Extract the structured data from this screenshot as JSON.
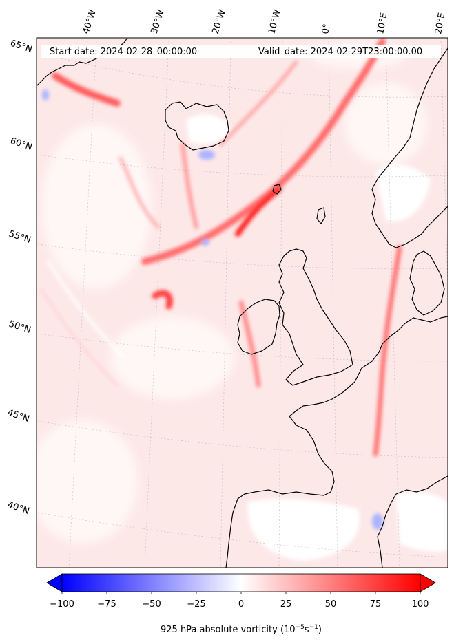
{
  "header": {
    "start_date": "Start date: 2024-02-28_00:00:00",
    "valid_date": "Valid_date: 2024-02-29T23:00:00.00"
  },
  "longitude_labels": [
    "40°W",
    "30°W",
    "20°W",
    "10°W",
    "0°",
    "10°E",
    "20°E"
  ],
  "latitude_labels": [
    "65°N",
    "60°N",
    "55°N",
    "50°N",
    "45°N",
    "40°N"
  ],
  "colorbar": {
    "ticks": [
      "−100",
      "−75",
      "−50",
      "−25",
      "0",
      "25",
      "50",
      "75",
      "100"
    ],
    "label": "925 hPa absolute vorticity (10",
    "label_sup1": "−5",
    "label_mid": "s",
    "label_sup2": "−1",
    "label_end": ")",
    "min_color": "#0000ff",
    "mid_color": "#ffffff",
    "max_color": "#ff0000"
  },
  "colors": {
    "background_fill": "#fde6e6",
    "coastline": "#000000",
    "positive": "#ff0000",
    "negative": "#0000ff"
  }
}
